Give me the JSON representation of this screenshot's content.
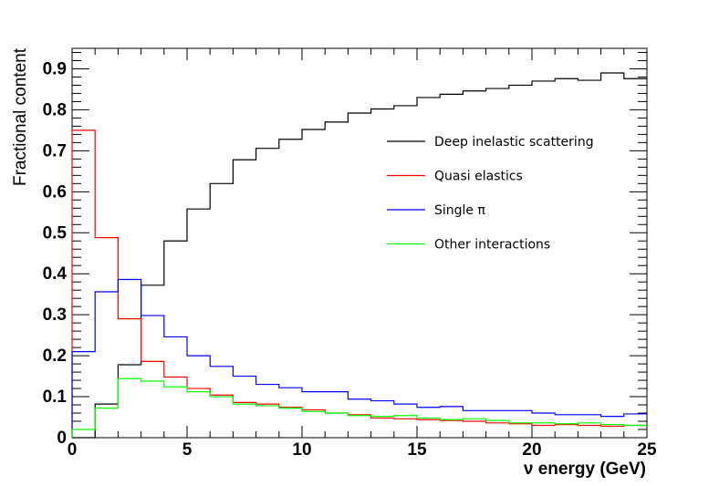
{
  "chart_data": {
    "type": "line",
    "style": "step-histogram",
    "xlabel": "ν energy (GeV)",
    "ylabel": "Fractional content",
    "xlim": [
      0,
      25
    ],
    "ylim": [
      0,
      0.95
    ],
    "x_ticks": [
      0,
      5,
      10,
      15,
      20,
      25
    ],
    "y_ticks": [
      0,
      0.1,
      0.2,
      0.3,
      0.4,
      0.5,
      0.6,
      0.7,
      0.8,
      0.9
    ],
    "x_tick_labels": [
      "0",
      "5",
      "10",
      "15",
      "20",
      "25"
    ],
    "y_tick_labels": [
      "0",
      "0.1",
      "0.2",
      "0.3",
      "0.4",
      "0.5",
      "0.6",
      "0.7",
      "0.8",
      "0.9"
    ],
    "grid": false,
    "bin_edges": [
      0,
      1,
      2,
      3,
      4,
      5,
      6,
      7,
      8,
      9,
      10,
      11,
      12,
      13,
      14,
      15,
      16,
      17,
      18,
      19,
      20,
      21,
      22,
      23,
      24,
      25
    ],
    "legend_position": "right-middle",
    "series": [
      {
        "name": "Deep inelastic scattering",
        "color": "#000000",
        "values": [
          0.0,
          0.082,
          0.178,
          0.372,
          0.48,
          0.558,
          0.62,
          0.678,
          0.706,
          0.728,
          0.752,
          0.77,
          0.792,
          0.802,
          0.81,
          0.83,
          0.838,
          0.846,
          0.852,
          0.86,
          0.87,
          0.876,
          0.872,
          0.89,
          0.876
        ]
      },
      {
        "name": "Quasi elastics",
        "color": "#ff0000",
        "values": [
          0.75,
          0.488,
          0.29,
          0.186,
          0.148,
          0.12,
          0.104,
          0.086,
          0.082,
          0.074,
          0.068,
          0.06,
          0.056,
          0.048,
          0.046,
          0.044,
          0.042,
          0.04,
          0.036,
          0.034,
          0.03,
          0.032,
          0.03,
          0.028,
          0.03
        ]
      },
      {
        "name": "Single π",
        "color": "#0000ff",
        "values": [
          0.21,
          0.356,
          0.386,
          0.298,
          0.246,
          0.2,
          0.174,
          0.15,
          0.13,
          0.122,
          0.112,
          0.112,
          0.094,
          0.09,
          0.082,
          0.074,
          0.076,
          0.066,
          0.066,
          0.066,
          0.06,
          0.056,
          0.056,
          0.052,
          0.058
        ]
      },
      {
        "name": "Other interactions",
        "color": "#00ff00",
        "values": [
          0.02,
          0.072,
          0.144,
          0.138,
          0.124,
          0.112,
          0.1,
          0.082,
          0.078,
          0.072,
          0.064,
          0.06,
          0.054,
          0.052,
          0.054,
          0.048,
          0.044,
          0.046,
          0.042,
          0.036,
          0.036,
          0.034,
          0.036,
          0.032,
          0.03
        ]
      }
    ]
  }
}
